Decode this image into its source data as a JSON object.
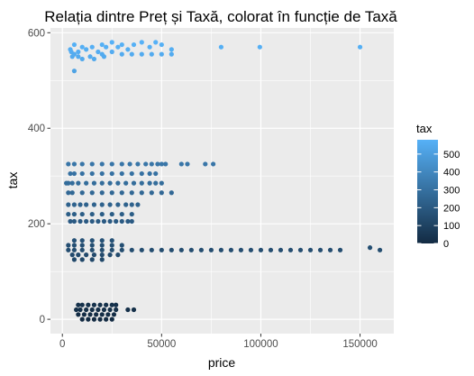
{
  "chart_data": {
    "type": "scatter",
    "title": "Relația dintre Preț și Taxă, colorat în funcție de Taxă",
    "xlabel": "price",
    "ylabel": "tax",
    "xlim": [
      -6000,
      167000
    ],
    "ylim": [
      -30,
      610
    ],
    "x_ticks": [
      0,
      50000,
      100000,
      150000
    ],
    "y_ticks": [
      0,
      200,
      400,
      600
    ],
    "x_tick_labels": [
      "0",
      "50000",
      "100000",
      "150000"
    ],
    "y_tick_labels": [
      "0",
      "200",
      "400",
      "600"
    ],
    "grid": true,
    "legend": {
      "title": "tax",
      "position": "right",
      "scale": "continuous",
      "range": [
        0,
        580
      ],
      "low_color": "#132b43",
      "high_color": "#56b1f7",
      "breaks": [
        0,
        100,
        200,
        300,
        400,
        500
      ],
      "break_labels": [
        "0",
        "100",
        "200",
        "300",
        "400",
        "500"
      ]
    },
    "series": [
      {
        "x": [
          150000,
          99500,
          80000,
          47000,
          50000,
          55000,
          44000,
          40000,
          36000,
          33000,
          30000,
          28000,
          25000,
          22000,
          20000,
          18000,
          15000,
          12000,
          10000,
          8000,
          6000,
          4000,
          4500,
          5000,
          6000,
          8000,
          10000,
          14000,
          20000,
          25000,
          30000,
          35000,
          40000,
          45000,
          50000,
          55000,
          16000,
          21000,
          6000
        ],
        "y": [
          570,
          570,
          570,
          580,
          575,
          565,
          570,
          580,
          575,
          565,
          575,
          570,
          580,
          570,
          575,
          560,
          570,
          565,
          570,
          560,
          575,
          565,
          560,
          550,
          555,
          550,
          545,
          550,
          555,
          560,
          555,
          555,
          555,
          555,
          555,
          555,
          545,
          550,
          520
        ]
      },
      {
        "x": [
          72000,
          76000,
          63000,
          60000,
          52000,
          50000,
          48000,
          45000,
          42000,
          38000,
          34000,
          30000,
          25000,
          20000,
          15000,
          10000,
          6000,
          3000,
          47000,
          44000,
          40000,
          35000,
          30000,
          25000,
          20000,
          15000,
          10000,
          6000,
          4000
        ],
        "y": [
          325,
          325,
          325,
          325,
          325,
          325,
          325,
          325,
          325,
          325,
          325,
          325,
          325,
          325,
          325,
          325,
          325,
          325,
          305,
          305,
          305,
          305,
          305,
          305,
          305,
          305,
          305,
          305,
          305
        ]
      },
      {
        "x": [
          50000,
          47000,
          44000,
          40000,
          36000,
          32000,
          28000,
          24000,
          20000,
          16000,
          12000,
          8000,
          5000,
          3000,
          2000,
          55000,
          50000,
          45000,
          40000,
          35000,
          30000,
          25000,
          20000,
          15000,
          10000,
          5000,
          3000
        ],
        "y": [
          285,
          285,
          285,
          285,
          285,
          285,
          285,
          285,
          285,
          285,
          285,
          285,
          285,
          285,
          285,
          265,
          265,
          265,
          265,
          265,
          265,
          265,
          265,
          265,
          265,
          265,
          265
        ]
      },
      {
        "x": [
          38000,
          35000,
          32000,
          28000,
          24000,
          20000,
          16000,
          12000,
          9000,
          6000,
          3000,
          35000,
          30000,
          25000,
          20000,
          15000,
          10000,
          6000,
          3000
        ],
        "y": [
          240,
          240,
          240,
          240,
          240,
          240,
          240,
          240,
          240,
          240,
          240,
          220,
          220,
          220,
          220,
          220,
          220,
          220,
          220
        ]
      },
      {
        "x": [
          35000,
          33000,
          30000,
          27000,
          24000,
          21000,
          18000,
          15000,
          12000,
          9000,
          6000,
          4000
        ],
        "y": [
          205,
          205,
          205,
          205,
          205,
          205,
          205,
          205,
          205,
          205,
          205,
          205
        ]
      },
      {
        "x": [
          160000,
          155000,
          140000,
          135000,
          130000,
          125000,
          120000,
          115000,
          110000,
          105000,
          100000,
          95000,
          90000,
          85000,
          80000,
          75000,
          70000,
          65000,
          60000,
          55000,
          50000,
          45000,
          40000,
          35000,
          30000,
          25000,
          20000,
          15000,
          10000,
          6000,
          3000,
          25000,
          20000,
          15000,
          10000,
          6000,
          30000,
          25000,
          20000,
          15000,
          10000,
          6000,
          3000,
          28000,
          24000,
          20000,
          16000,
          12000,
          8000,
          5000,
          20000,
          15000,
          10000,
          6000
        ],
        "y": [
          145,
          150,
          145,
          145,
          145,
          145,
          145,
          145,
          145,
          145,
          145,
          145,
          145,
          145,
          145,
          145,
          145,
          145,
          145,
          145,
          145,
          145,
          145,
          145,
          145,
          145,
          145,
          145,
          145,
          145,
          145,
          165,
          165,
          165,
          165,
          165,
          155,
          155,
          155,
          155,
          155,
          155,
          155,
          135,
          135,
          135,
          135,
          135,
          135,
          135,
          125,
          125,
          125,
          125
        ]
      },
      {
        "x": [
          36000,
          33000,
          27000,
          25000,
          22000,
          19000,
          16000,
          13000,
          10000,
          8000,
          27000,
          24000,
          21000,
          18000,
          15000,
          12000,
          9000,
          7000,
          26000,
          23000,
          20000,
          17000,
          14000,
          11000,
          8000,
          25000,
          22000,
          19000,
          16000,
          13000,
          10000
        ],
        "y": [
          20,
          20,
          30,
          30,
          30,
          30,
          30,
          30,
          30,
          30,
          20,
          20,
          20,
          20,
          20,
          20,
          20,
          20,
          10,
          10,
          10,
          10,
          10,
          10,
          10,
          0,
          0,
          0,
          0,
          0,
          0
        ]
      }
    ]
  }
}
